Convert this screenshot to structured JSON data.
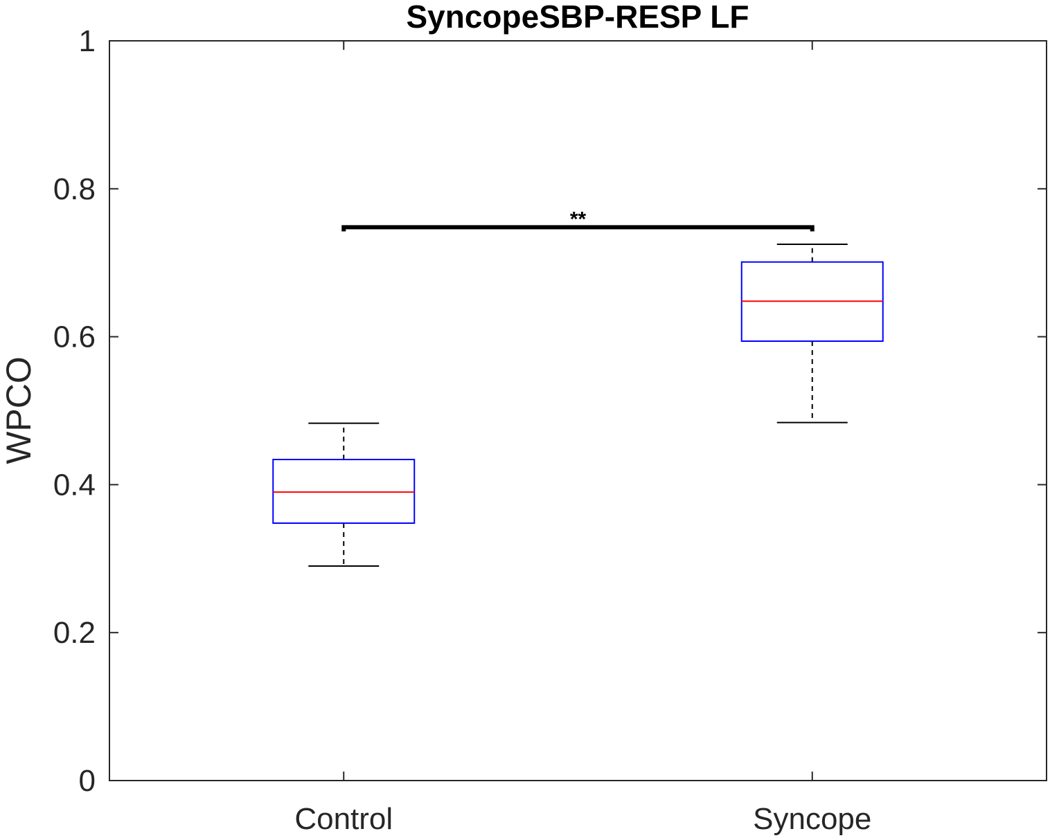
{
  "chart_data": {
    "type": "boxplot",
    "title": "SyncopeSBP-RESP LF",
    "xlabel": "",
    "ylabel": "WPCO",
    "categories": [
      "Control",
      "Syncope"
    ],
    "ylim": [
      0,
      1
    ],
    "yticks": [
      0,
      0.2,
      0.4,
      0.6,
      0.8,
      1
    ],
    "ytick_labels": [
      "0",
      "0.2",
      "0.4",
      "0.6",
      "0.8",
      "1"
    ],
    "grid": false,
    "boxes": [
      {
        "category": "Control",
        "whisker_low": 0.29,
        "q1": 0.348,
        "median": 0.39,
        "q3": 0.434,
        "whisker_high": 0.483
      },
      {
        "category": "Syncope",
        "whisker_low": 0.484,
        "q1": 0.594,
        "median": 0.648,
        "q3": 0.701,
        "whisker_high": 0.725
      }
    ],
    "significance": {
      "between": [
        "Control",
        "Syncope"
      ],
      "y": 0.748,
      "label": "**"
    },
    "colors": {
      "box": "#0000ff",
      "median": "#ff0000",
      "whisker": "#000000",
      "axis": "#262626"
    }
  }
}
